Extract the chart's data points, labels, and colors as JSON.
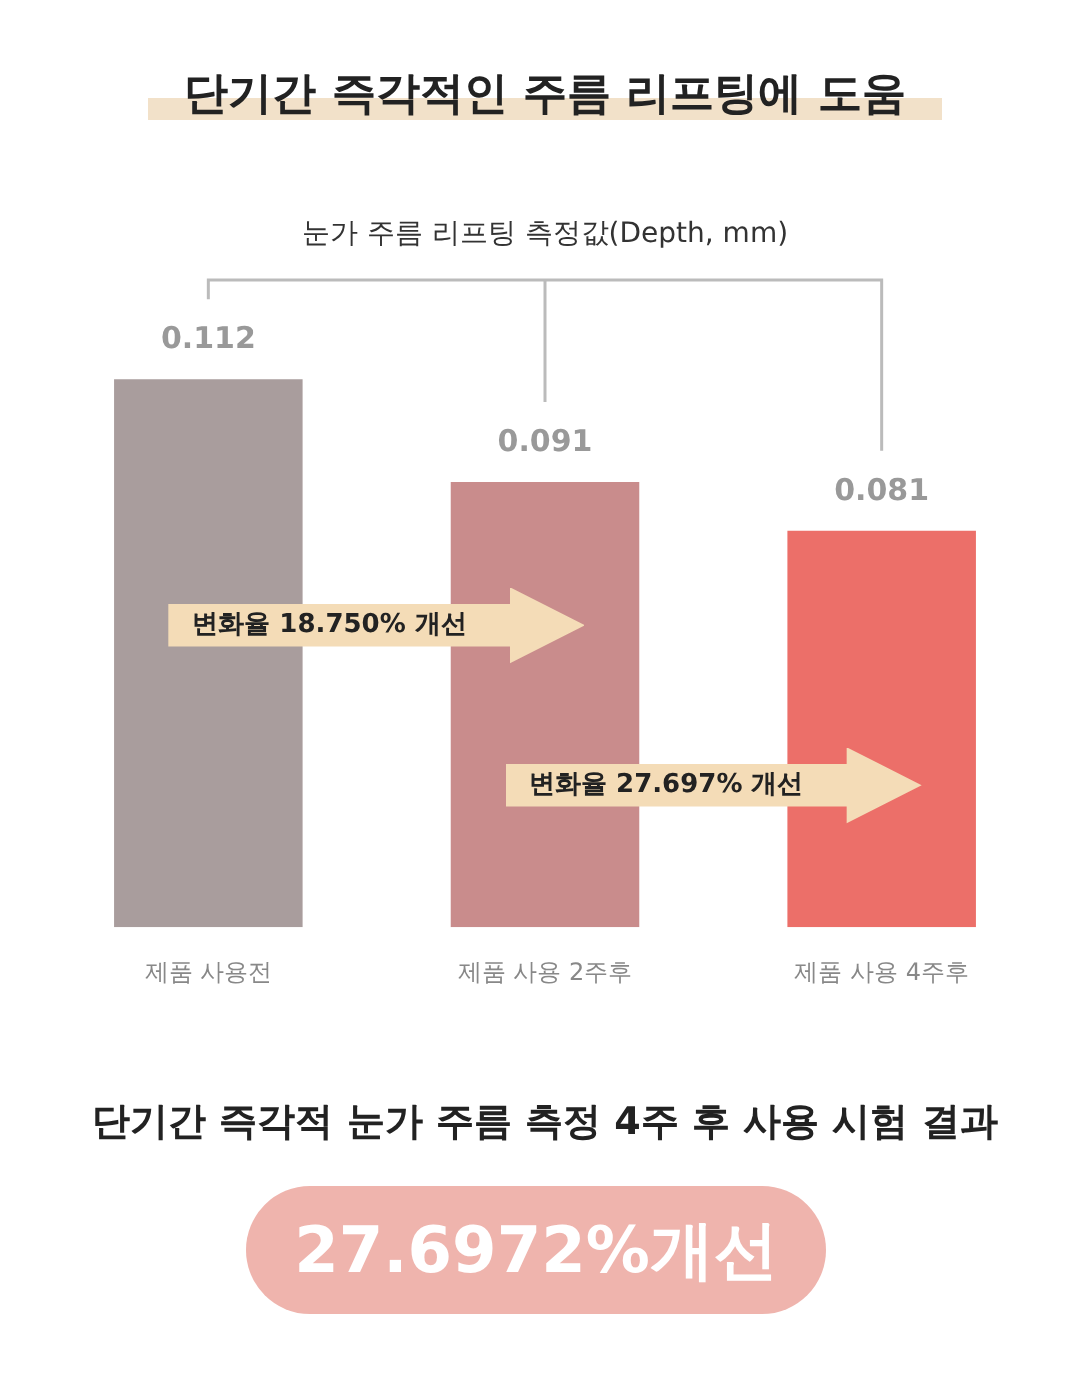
{
  "chart_data": {
    "type": "bar",
    "title": "단기간 즉각적인 주름 리프팅에 도움",
    "subtitle": "눈가 주름 리프팅 측정값(Depth, mm)",
    "categories": [
      "제품 사용전",
      "제품 사용 2주후",
      "제품 사용 4주후"
    ],
    "values": [
      0.112,
      0.091,
      0.081
    ],
    "colors": [
      "#a99d9d",
      "#c98c8c",
      "#ec6f69"
    ],
    "data_labels": true,
    "grid": false,
    "legend": false,
    "annotations": [
      "변화율 18.750% 개선",
      "변화율 27.697% 개선",
      "단기간 즉각적 눈가 주름 측정 4주 후 사용 시험 결과",
      "27.6972%개선"
    ]
  }
}
